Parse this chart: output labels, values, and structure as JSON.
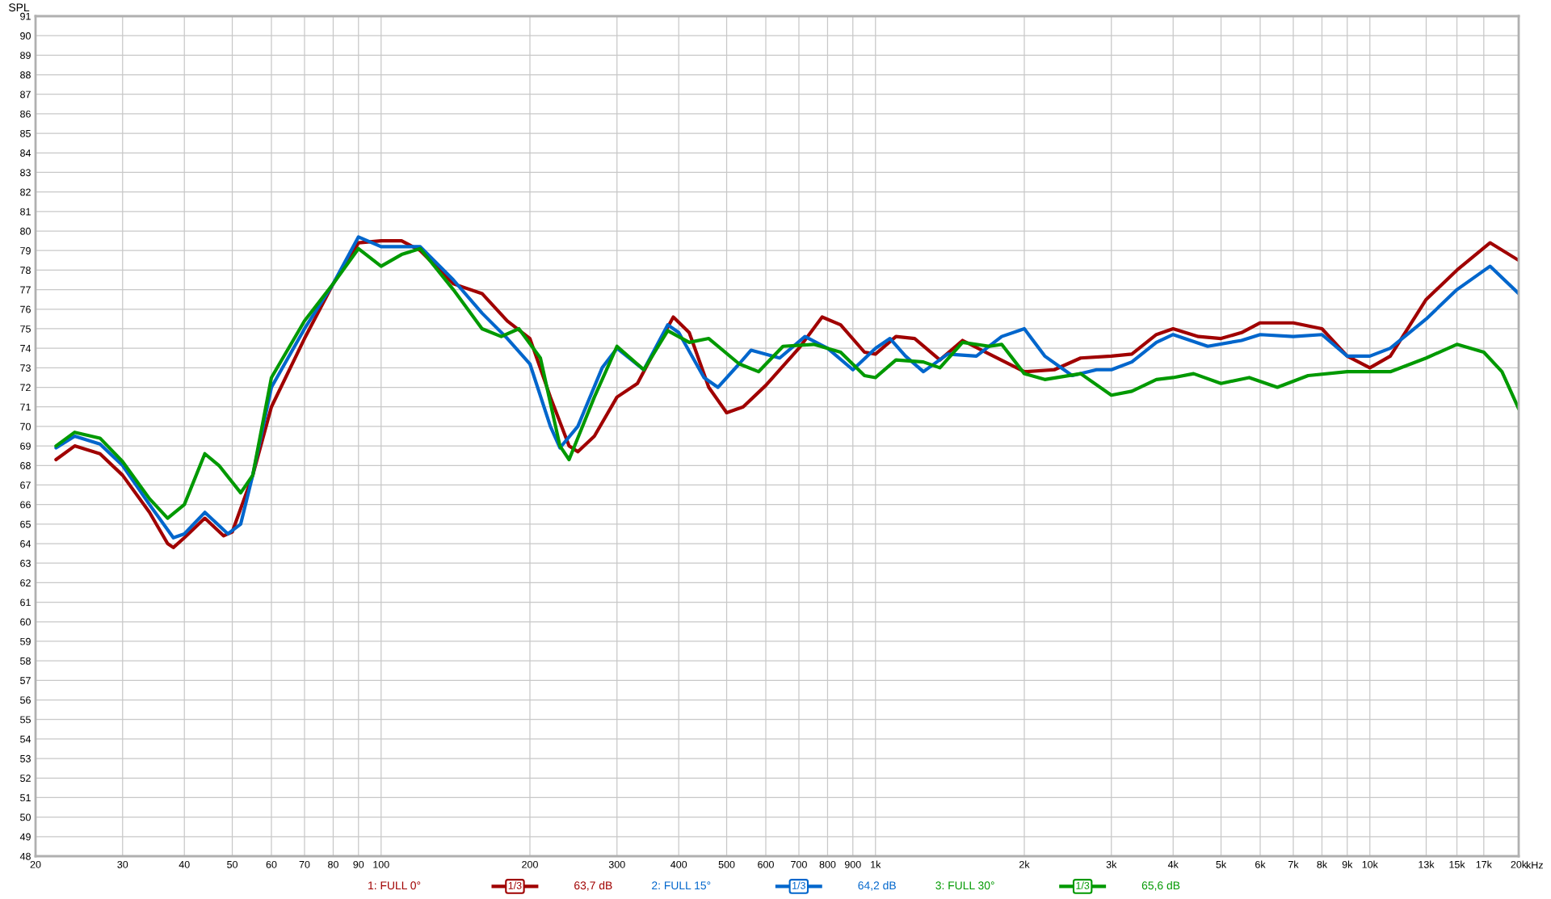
{
  "chart_data": {
    "type": "line",
    "ylabel": "SPL",
    "log": "x",
    "grid": true,
    "legend": "bottom",
    "marker": "none",
    "line_style": "solid",
    "xlim": [
      20,
      20000
    ],
    "ylim": [
      48,
      91
    ],
    "xticks": [
      20,
      30,
      40,
      50,
      60,
      70,
      80,
      90,
      100,
      200,
      300,
      400,
      500,
      600,
      700,
      800,
      900,
      {
        "value": 1000,
        "label": "1k"
      },
      {
        "value": 2000,
        "label": "2k"
      },
      {
        "value": 3000,
        "label": "3k"
      },
      {
        "value": 4000,
        "label": "4k"
      },
      {
        "value": 5000,
        "label": "5k"
      },
      {
        "value": 6000,
        "label": "6k"
      },
      {
        "value": 7000,
        "label": "7k"
      },
      {
        "value": 8000,
        "label": "8k"
      },
      {
        "value": 9000,
        "label": "9k"
      },
      {
        "value": 10000,
        "label": "10k"
      },
      {
        "value": 13000,
        "label": "13k"
      },
      {
        "value": 15000,
        "label": "15k"
      },
      {
        "value": 17000,
        "label": "17k"
      },
      {
        "value": 20000,
        "label": "20k"
      }
    ],
    "xlabel": "kHz",
    "yticks": [
      48,
      49,
      50,
      51,
      52,
      53,
      54,
      55,
      56,
      57,
      58,
      59,
      60,
      61,
      62,
      63,
      64,
      65,
      66,
      67,
      68,
      69,
      70,
      71,
      72,
      73,
      74,
      75,
      76,
      77,
      78,
      79,
      80,
      81,
      82,
      83,
      84,
      85,
      86,
      87,
      88,
      89,
      90,
      91
    ],
    "annotations": [
      "1/3",
      "63,7 dB",
      "1/3",
      "64,2 dB",
      "1/3",
      "65,6 dB"
    ],
    "series": [
      {
        "name": "1: FULL 0°",
        "color": "#a00000",
        "x": [
          22,
          24,
          27,
          30,
          34,
          37,
          38,
          40,
          44,
          48,
          50,
          55,
          60,
          70,
          80,
          90,
          100,
          110,
          120,
          140,
          160,
          180,
          200,
          220,
          240,
          250,
          270,
          300,
          330,
          360,
          390,
          420,
          460,
          500,
          540,
          600,
          700,
          780,
          850,
          950,
          1000,
          1100,
          1200,
          1350,
          1500,
          1700,
          2000,
          2300,
          2600,
          3000,
          3300,
          3700,
          4000,
          4500,
          5000,
          5500,
          6000,
          7000,
          8000,
          9000,
          10000,
          11000,
          13000,
          15000,
          17500,
          20000
        ],
        "values": [
          68.3,
          69.0,
          68.6,
          67.5,
          65.6,
          64.0,
          63.8,
          64.3,
          65.3,
          64.4,
          64.6,
          67.5,
          71,
          74.5,
          77.3,
          79.4,
          79.5,
          79.5,
          79,
          77.3,
          76.8,
          75.4,
          74.5,
          71.5,
          69,
          68.7,
          69.5,
          71.5,
          72.2,
          74,
          75.6,
          74.8,
          72,
          70.7,
          71.0,
          72.1,
          74,
          75.6,
          75.2,
          73.8,
          73.7,
          74.6,
          74.5,
          73.4,
          74.4,
          73.7,
          72.8,
          72.9,
          73.5,
          73.6,
          73.7,
          74.7,
          75.0,
          74.6,
          74.5,
          74.8,
          75.3,
          75.3,
          75,
          73.6,
          73.0,
          73.6,
          76.5,
          78,
          79.4,
          78.5
        ]
      },
      {
        "name": "2: FULL 15°",
        "color": "#0066cc",
        "x": [
          22,
          24,
          27,
          30,
          34,
          38,
          40,
          44,
          49,
          52,
          55,
          60,
          70,
          80,
          90,
          100,
          120,
          140,
          160,
          180,
          200,
          220,
          230,
          250,
          280,
          300,
          340,
          380,
          400,
          450,
          480,
          530,
          560,
          640,
          720,
          800,
          900,
          1000,
          1070,
          1150,
          1250,
          1400,
          1600,
          1800,
          2000,
          2200,
          2500,
          2800,
          3000,
          3300,
          3700,
          4000,
          4700,
          5500,
          6000,
          7000,
          8000,
          9000,
          10000,
          11000,
          13000,
          15000,
          17500,
          20000
        ],
        "values": [
          68.9,
          69.5,
          69.1,
          68,
          66,
          64.3,
          64.5,
          65.6,
          64.5,
          65,
          67.5,
          72,
          75,
          77.3,
          79.7,
          79.2,
          79.2,
          77.5,
          75.8,
          74.5,
          73.2,
          70,
          68.9,
          70,
          73,
          74,
          72.9,
          75.2,
          74.8,
          72.5,
          72,
          73.2,
          73.9,
          73.5,
          74.6,
          74,
          72.9,
          74.0,
          74.5,
          73.6,
          72.8,
          73.7,
          73.6,
          74.6,
          75.0,
          73.6,
          72.6,
          72.9,
          72.9,
          73.3,
          74.3,
          74.7,
          74.1,
          74.4,
          74.7,
          74.6,
          74.7,
          73.6,
          73.6,
          74,
          75.5,
          77,
          78.2,
          76.8
        ]
      },
      {
        "name": "3: FULL 30°",
        "color": "#009900",
        "x": [
          22,
          24,
          27,
          30,
          34,
          37,
          40,
          44,
          47,
          52,
          55,
          60,
          70,
          80,
          90,
          100,
          110,
          120,
          140,
          160,
          175,
          190,
          210,
          230,
          240,
          270,
          300,
          340,
          380,
          420,
          460,
          530,
          580,
          650,
          750,
          850,
          950,
          1000,
          1100,
          1250,
          1350,
          1500,
          1700,
          1800,
          2000,
          2200,
          2600,
          3000,
          3300,
          3700,
          4000,
          4400,
          5000,
          5700,
          6500,
          7500,
          9000,
          10000,
          11000,
          13000,
          15000,
          17000,
          18500,
          20000
        ],
        "values": [
          69.0,
          69.7,
          69.4,
          68.2,
          66.3,
          65.3,
          66,
          68.6,
          68,
          66.6,
          67.5,
          72.5,
          75.4,
          77.3,
          79.1,
          78.2,
          78.8,
          79.1,
          77,
          75,
          74.6,
          75,
          73.5,
          69,
          68.3,
          71.5,
          74.1,
          72.9,
          74.9,
          74.3,
          74.5,
          73.2,
          72.8,
          74.1,
          74.2,
          73.8,
          72.6,
          72.5,
          73.4,
          73.3,
          73.0,
          74.3,
          74.1,
          74.2,
          72.7,
          72.4,
          72.7,
          71.6,
          71.8,
          72.4,
          72.5,
          72.7,
          72.2,
          72.5,
          72.0,
          72.6,
          72.8,
          72.8,
          72.8,
          73.5,
          74.2,
          73.8,
          72.8,
          70.9
        ]
      }
    ]
  }
}
